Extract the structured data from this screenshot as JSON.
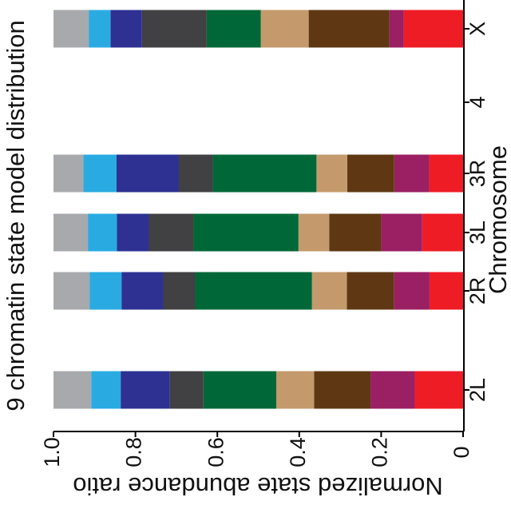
{
  "chart_data": {
    "type": "bar",
    "orientation": "stacked-horizontal-rotated",
    "title": "9 chromatin state model distribution",
    "xlabel": "Chromosome",
    "ylabel": "Normalized state abundance ratio",
    "ylim": [
      0,
      1.0
    ],
    "yticks": [
      "0",
      "0.2",
      "0.4",
      "0.6",
      "0.8",
      "1.0"
    ],
    "categories": [
      "2L",
      "2R",
      "3L",
      "3R",
      "4",
      "X"
    ],
    "series": [
      {
        "name": "",
        "color": "#ee1c25",
        "values": [
          0.118,
          0.082,
          0.1,
          0.083,
          0,
          0.145
        ]
      },
      {
        "name": "",
        "color": "#9b1f63",
        "values": [
          0.108,
          0.087,
          0.1,
          0.085,
          0,
          0.035
        ]
      },
      {
        "name": "",
        "color": "#5f3813",
        "values": [
          0.138,
          0.115,
          0.127,
          0.115,
          0,
          0.197
        ]
      },
      {
        "name": "",
        "color": "#c49a6c",
        "values": [
          0.092,
          0.085,
          0.075,
          0.075,
          0,
          0.117
        ]
      },
      {
        "name": "",
        "color": "#006838",
        "values": [
          0.178,
          0.285,
          0.256,
          0.253,
          0,
          0.132
        ]
      },
      {
        "name": "",
        "color": "#414042",
        "values": [
          0.082,
          0.078,
          0.109,
          0.083,
          0,
          0.158
        ]
      },
      {
        "name": "",
        "color": "#2e3192",
        "values": [
          0.12,
          0.102,
          0.078,
          0.152,
          0,
          0.077
        ]
      },
      {
        "name": "",
        "color": "#29abe2",
        "values": [
          0.072,
          0.078,
          0.071,
          0.081,
          0,
          0.053
        ]
      },
      {
        "name": "",
        "color": "#a7a9ac",
        "values": [
          0.092,
          0.088,
          0.084,
          0.073,
          0,
          0.086
        ]
      }
    ],
    "grid": false,
    "legend": "none"
  }
}
